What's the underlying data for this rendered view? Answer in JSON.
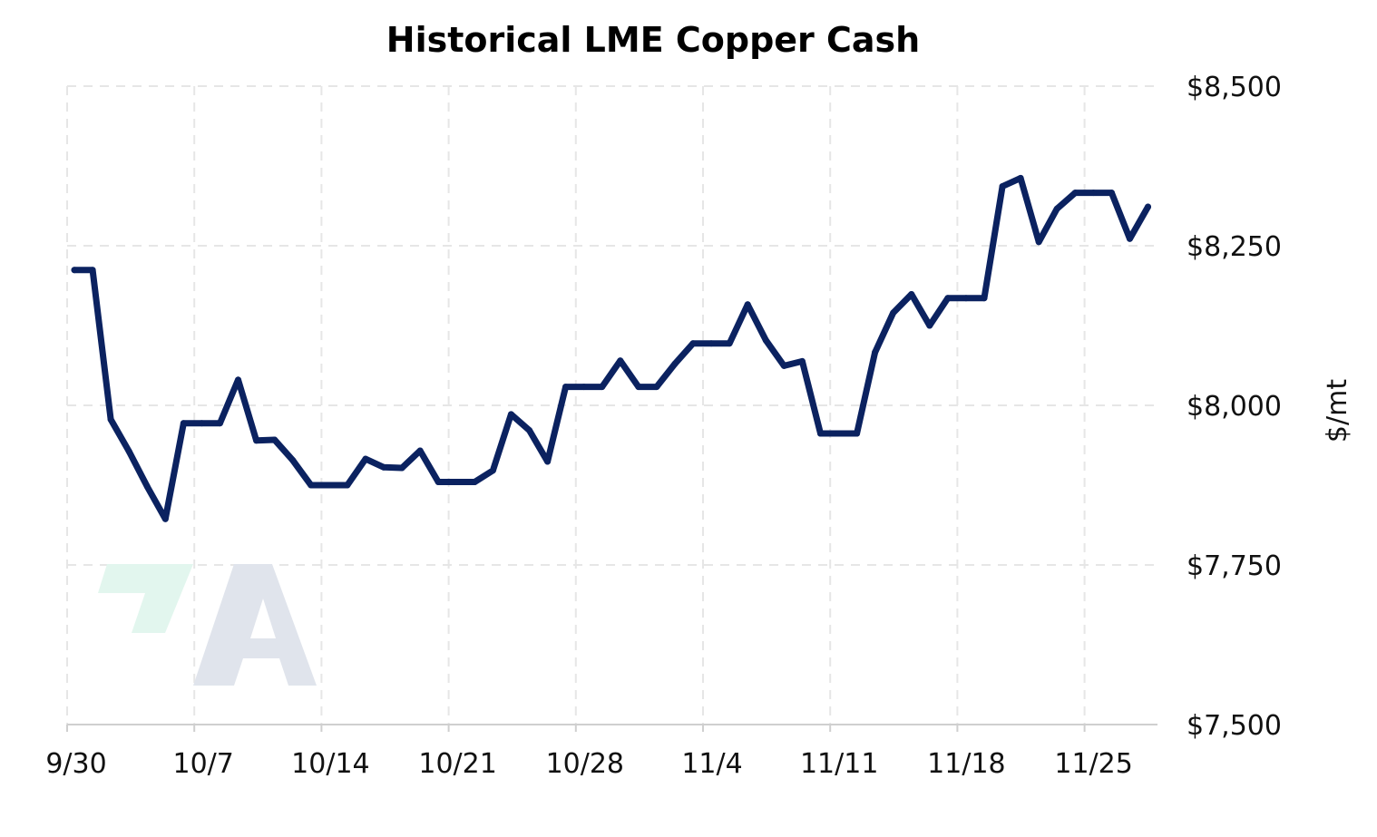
{
  "chart_data": {
    "type": "line",
    "title": "Historical LME Copper Cash",
    "xlabel": "",
    "ylabel": "$/mt",
    "ylim": [
      7500,
      8500
    ],
    "x_ticks": [
      "9/30",
      "10/7",
      "10/14",
      "10/21",
      "10/28",
      "11/4",
      "11/11",
      "11/18",
      "11/25"
    ],
    "y_ticks": [
      "$8,500",
      "$8,250",
      "$8,000",
      "$7,750",
      "$7,500"
    ],
    "y_tick_values": [
      8500,
      8250,
      8000,
      7750,
      7500
    ],
    "grid": true,
    "line_color": "#0b2260",
    "series": [
      {
        "name": "",
        "points": [
          {
            "x": "9/30",
            "y": 8212
          },
          {
            "x": "10/1",
            "y": 8212
          },
          {
            "x": "10/2",
            "y": 7978
          },
          {
            "x": "10/3",
            "y": 7928
          },
          {
            "x": "10/4",
            "y": 7873
          },
          {
            "x": "10/5",
            "y": 7822
          },
          {
            "x": "10/6",
            "y": 7972
          },
          {
            "x": "10/7",
            "y": 7972
          },
          {
            "x": "10/8",
            "y": 7972
          },
          {
            "x": "10/9",
            "y": 8040
          },
          {
            "x": "10/10",
            "y": 7945
          },
          {
            "x": "10/11",
            "y": 7946
          },
          {
            "x": "10/12",
            "y": 7914
          },
          {
            "x": "10/13",
            "y": 7875
          },
          {
            "x": "10/14",
            "y": 7875
          },
          {
            "x": "10/15",
            "y": 7875
          },
          {
            "x": "10/16",
            "y": 7916
          },
          {
            "x": "10/17",
            "y": 7903
          },
          {
            "x": "10/18",
            "y": 7902
          },
          {
            "x": "10/19",
            "y": 7929
          },
          {
            "x": "10/20",
            "y": 7880
          },
          {
            "x": "10/21",
            "y": 7880
          },
          {
            "x": "10/22",
            "y": 7880
          },
          {
            "x": "10/23",
            "y": 7898
          },
          {
            "x": "10/24",
            "y": 7986
          },
          {
            "x": "10/25",
            "y": 7961
          },
          {
            "x": "10/26",
            "y": 7912
          },
          {
            "x": "10/27",
            "y": 8029
          },
          {
            "x": "10/28",
            "y": 8029
          },
          {
            "x": "10/29",
            "y": 8029
          },
          {
            "x": "10/30",
            "y": 8070
          },
          {
            "x": "10/31",
            "y": 8029
          },
          {
            "x": "11/1",
            "y": 8029
          },
          {
            "x": "11/2",
            "y": 8065
          },
          {
            "x": "11/3",
            "y": 8097
          },
          {
            "x": "11/4",
            "y": 8097
          },
          {
            "x": "11/5",
            "y": 8097
          },
          {
            "x": "11/6",
            "y": 8158
          },
          {
            "x": "11/7",
            "y": 8102
          },
          {
            "x": "11/8",
            "y": 8062
          },
          {
            "x": "11/9",
            "y": 8069
          },
          {
            "x": "11/10",
            "y": 7956
          },
          {
            "x": "11/11",
            "y": 7956
          },
          {
            "x": "11/12",
            "y": 7956
          },
          {
            "x": "11/13",
            "y": 8083
          },
          {
            "x": "11/14",
            "y": 8145
          },
          {
            "x": "11/15",
            "y": 8174
          },
          {
            "x": "11/16",
            "y": 8125
          },
          {
            "x": "11/17",
            "y": 8168
          },
          {
            "x": "11/18",
            "y": 8168
          },
          {
            "x": "11/19",
            "y": 8168
          },
          {
            "x": "11/20",
            "y": 8343
          },
          {
            "x": "11/21",
            "y": 8356
          },
          {
            "x": "11/22",
            "y": 8256
          },
          {
            "x": "11/23",
            "y": 8308
          },
          {
            "x": "11/24",
            "y": 8333
          },
          {
            "x": "11/25",
            "y": 8333
          },
          {
            "x": "11/26",
            "y": 8333
          },
          {
            "x": "11/27",
            "y": 8261
          },
          {
            "x": "11/28",
            "y": 8311
          }
        ]
      }
    ]
  }
}
